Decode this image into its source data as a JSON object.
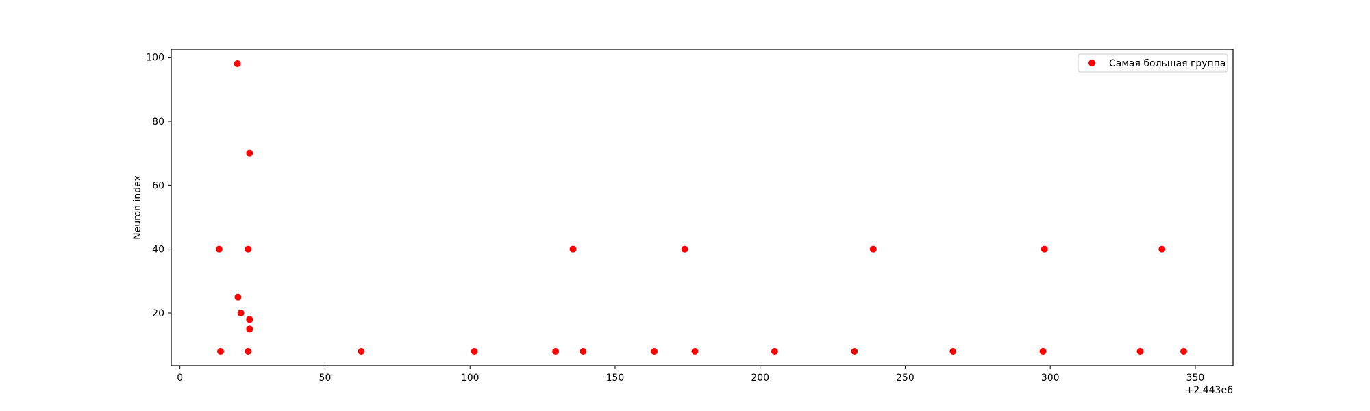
{
  "chart_data": {
    "type": "scatter",
    "title": "",
    "xlabel": "",
    "ylabel": "Neuron index",
    "x_offset_label": "+2.443e6",
    "xlim": [
      -3,
      363
    ],
    "ylim": [
      3.5,
      102.5
    ],
    "xticks": [
      0,
      50,
      100,
      150,
      200,
      250,
      300,
      350
    ],
    "yticks": [
      20,
      40,
      60,
      80,
      100
    ],
    "grid": false,
    "legend": {
      "position": "top-right"
    },
    "series": [
      {
        "name": "Самая большая группа",
        "color": "#ff0000",
        "points": [
          {
            "x": 13.5,
            "y": 40
          },
          {
            "x": 14.0,
            "y": 8
          },
          {
            "x": 19.8,
            "y": 98
          },
          {
            "x": 20.0,
            "y": 25
          },
          {
            "x": 21.0,
            "y": 20
          },
          {
            "x": 23.5,
            "y": 8
          },
          {
            "x": 23.5,
            "y": 40
          },
          {
            "x": 24.0,
            "y": 70
          },
          {
            "x": 24.0,
            "y": 18
          },
          {
            "x": 24.0,
            "y": 15
          },
          {
            "x": 62.5,
            "y": 8
          },
          {
            "x": 101.5,
            "y": 8
          },
          {
            "x": 129.5,
            "y": 8
          },
          {
            "x": 135.5,
            "y": 40
          },
          {
            "x": 139.0,
            "y": 8
          },
          {
            "x": 163.5,
            "y": 8
          },
          {
            "x": 174.0,
            "y": 40
          },
          {
            "x": 177.5,
            "y": 8
          },
          {
            "x": 205.0,
            "y": 8
          },
          {
            "x": 232.5,
            "y": 8
          },
          {
            "x": 239.0,
            "y": 40
          },
          {
            "x": 266.5,
            "y": 8
          },
          {
            "x": 297.5,
            "y": 8
          },
          {
            "x": 298.0,
            "y": 40
          },
          {
            "x": 331.0,
            "y": 8
          },
          {
            "x": 338.5,
            "y": 40
          },
          {
            "x": 346.0,
            "y": 8
          }
        ]
      }
    ]
  }
}
